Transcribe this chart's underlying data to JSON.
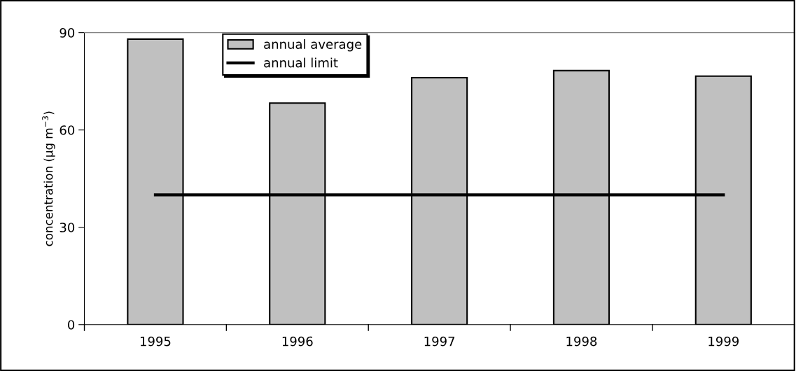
{
  "chart_data": {
    "type": "bar",
    "ylabel": "concentration (µg m$^{−3}$)",
    "categories": [
      "1995",
      "1996",
      "1997",
      "1998",
      "1999"
    ],
    "series": [
      {
        "name": "annual average",
        "color": "#c0c0c0",
        "values": [
          88,
          68.3,
          76.1,
          78.3,
          76.6
        ]
      },
      {
        "name": "annual limit",
        "type": "line",
        "color": "#000000",
        "values": [
          40,
          40,
          40,
          40,
          40
        ]
      }
    ],
    "ylim": [
      0,
      90
    ],
    "yticks": [
      0,
      30,
      60,
      90
    ],
    "grid": false,
    "legend": "top",
    "marker": "none",
    "line_style": "solid"
  }
}
